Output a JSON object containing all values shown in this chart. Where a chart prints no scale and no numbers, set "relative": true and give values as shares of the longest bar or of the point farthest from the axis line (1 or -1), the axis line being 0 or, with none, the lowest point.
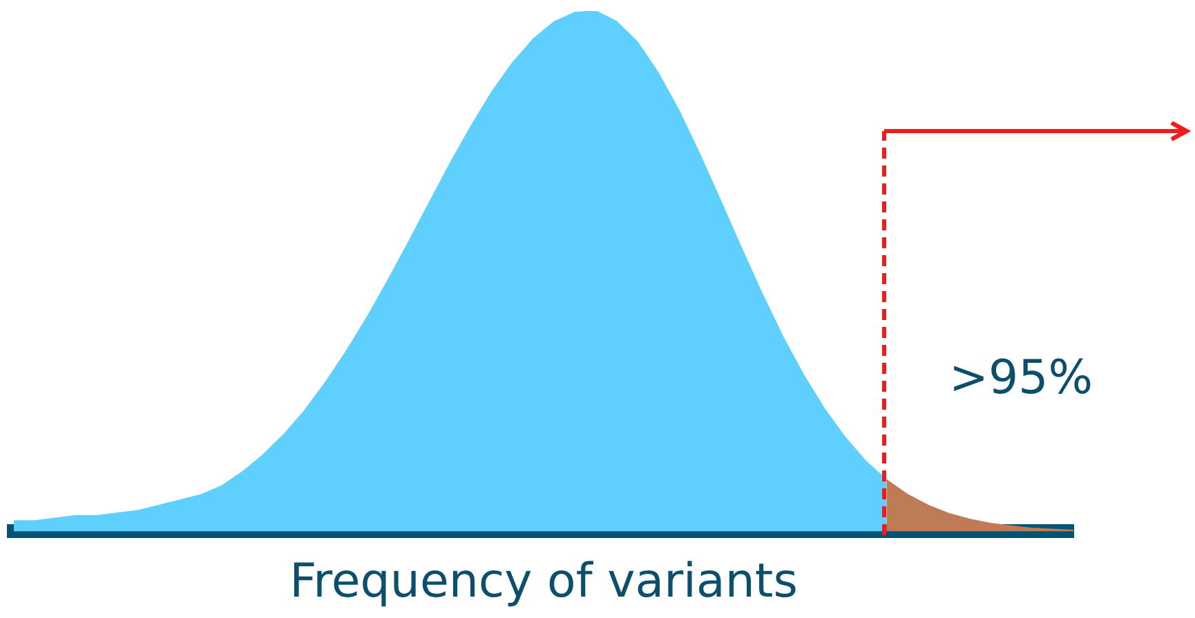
{
  "chart_data": {
    "type": "area",
    "relative": true,
    "xlabel": "Frequency of variants",
    "annotations": [
      ">95%"
    ],
    "tick_labels": false,
    "legend": false,
    "grid": false,
    "marker": "none",
    "categories": [
      null,
      null,
      null,
      null,
      null,
      null,
      null,
      null,
      null,
      null,
      null,
      null,
      null,
      null,
      null,
      null,
      null,
      null,
      null,
      null,
      null,
      null,
      null,
      null,
      null,
      null,
      null,
      null,
      null,
      null,
      null,
      null,
      null,
      null,
      null,
      null,
      null,
      null,
      null,
      null,
      null,
      null,
      null,
      null,
      null,
      null,
      null,
      null,
      null,
      null,
      null,
      null
    ],
    "series": [
      {
        "color": "#5fd0fe",
        "values": [
          0.02,
          0.02,
          0.025,
          0.03,
          0.03,
          0.035,
          0.04,
          0.05,
          0.06,
          0.07,
          0.087,
          0.114,
          0.147,
          0.186,
          0.232,
          0.286,
          0.346,
          0.411,
          0.482,
          0.556,
          0.632,
          0.707,
          0.778,
          0.844,
          0.9,
          0.946,
          0.979,
          0.997,
          1,
          0.98,
          0.941,
          0.882,
          0.81,
          0.726,
          0.637,
          0.546,
          0.458,
          0.375,
          0.301,
          0.236,
          0.181,
          0.135,
          0.099,
          null,
          null,
          null,
          null,
          null,
          null,
          null,
          null,
          null
        ]
      },
      {
        "color": "#bf7a56",
        "values": [
          null,
          null,
          null,
          null,
          null,
          null,
          null,
          null,
          null,
          null,
          null,
          null,
          null,
          null,
          null,
          null,
          null,
          null,
          null,
          null,
          null,
          null,
          null,
          null,
          null,
          null,
          null,
          null,
          null,
          null,
          null,
          null,
          null,
          null,
          null,
          null,
          null,
          null,
          null,
          null,
          null,
          null,
          0.099,
          0.071,
          0.05,
          0.034,
          0.023,
          0.015,
          0.01,
          0.006,
          0.004,
          0.002
        ]
      }
    ]
  }
}
